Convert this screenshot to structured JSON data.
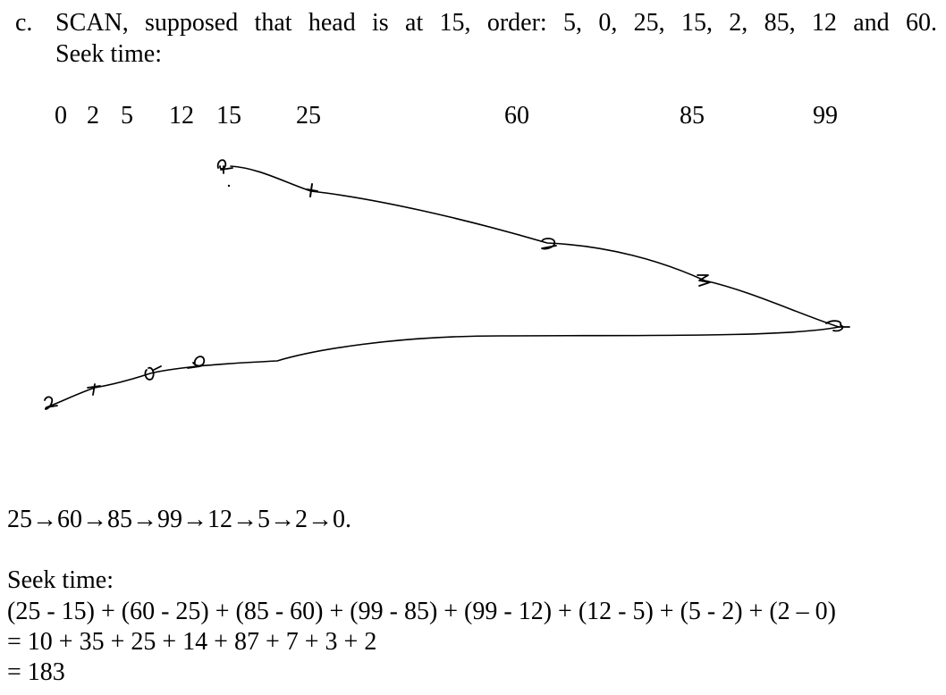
{
  "question": {
    "label": "c.",
    "line1": "SCAN, supposed that head is at 15, order: 5, 0, 25, 15, 2, 85, 12 and 60.",
    "line2": "Seek time:"
  },
  "axis": {
    "labels": [
      "0",
      "2",
      "5",
      "12",
      "15",
      "25",
      "60",
      "85",
      "99"
    ]
  },
  "sketch": {
    "marks": [
      "1",
      "2",
      "0",
      "3",
      "5",
      "4",
      "0",
      "2",
      "7"
    ]
  },
  "answer": {
    "order": "25→60→85→99→12→5→2→0.",
    "seek_title": "Seek time:",
    "formula": "(25 - 15) + (60 - 25) + (85 - 60) + (99 - 85) + (99 - 12) + (12 - 5) + (5 - 2) + (2 – 0)",
    "sum": "= 10 + 35 + 25 + 14 + 87 + 7 + 3 + 2",
    "total": "= 183"
  }
}
